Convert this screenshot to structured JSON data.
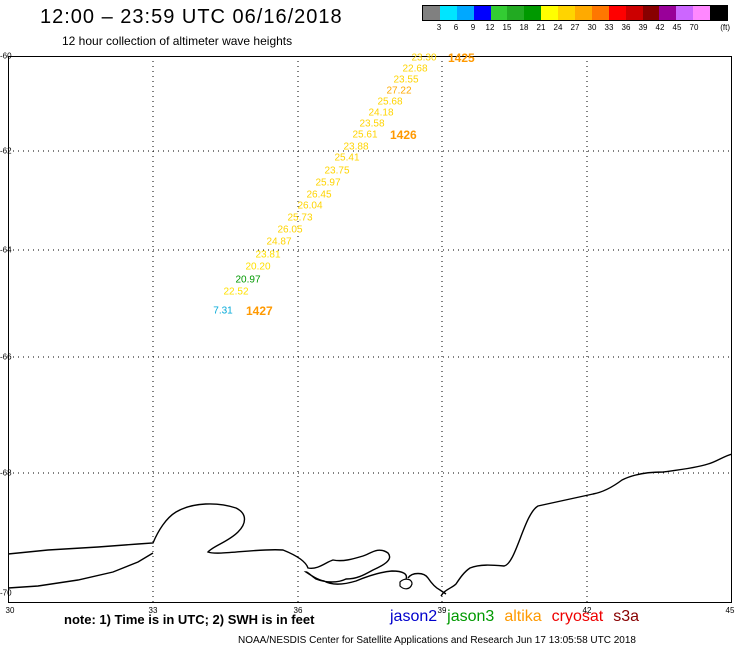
{
  "title": "12:00 – 23:59 UTC 06/16/2018",
  "subtitle": "12 hour collection of altimeter wave heights",
  "legend": {
    "colors": [
      "#808080",
      "#00e5ff",
      "#00a8ff",
      "#0000ff",
      "#33cc33",
      "#22aa22",
      "#009900",
      "#ffff00",
      "#ffd400",
      "#ffaa00",
      "#ff7700",
      "#ff0000",
      "#cc0000",
      "#880000",
      "#990099",
      "#cc66ff",
      "#ff88ff",
      "#000000"
    ],
    "values": [
      "3",
      "6",
      "9",
      "12",
      "15",
      "18",
      "21",
      "24",
      "27",
      "30",
      "33",
      "36",
      "39",
      "42",
      "45",
      "70"
    ],
    "unit": "(ft)"
  },
  "axes": {
    "lon_labels": [
      "30",
      "33",
      "36",
      "39",
      "42",
      "45"
    ],
    "lat_labels": [
      "-60",
      "-62",
      "-64",
      "-66",
      "-68",
      "-70"
    ]
  },
  "wave_heights": [
    {
      "v": "23.30",
      "c": "#ffd400"
    },
    {
      "v": "22.68",
      "c": "#ffd400"
    },
    {
      "v": "23.55",
      "c": "#ffd400"
    },
    {
      "v": "27.22",
      "c": "#ffaa00"
    },
    {
      "v": "25.68",
      "c": "#ffd400"
    },
    {
      "v": "24.18",
      "c": "#ffd400"
    },
    {
      "v": "23.58",
      "c": "#ffd400"
    },
    {
      "v": "25.61",
      "c": "#ffd400"
    },
    {
      "v": "23.88",
      "c": "#ffd400"
    },
    {
      "v": "25.41",
      "c": "#ffd400"
    },
    {
      "v": "23.75",
      "c": "#ffd400"
    },
    {
      "v": "25.97",
      "c": "#ffd400"
    },
    {
      "v": "26.45",
      "c": "#ffd400"
    },
    {
      "v": "26.04",
      "c": "#ffd400"
    },
    {
      "v": "25.73",
      "c": "#ffd400"
    },
    {
      "v": "26.05",
      "c": "#ffd400"
    },
    {
      "v": "24.87",
      "c": "#ffd400"
    },
    {
      "v": "23.81",
      "c": "#ffe000"
    },
    {
      "v": "20.20",
      "c": "#ffe000"
    },
    {
      "v": "20.97",
      "c": "#009900"
    },
    {
      "v": "22.52",
      "c": "#ffe000"
    },
    {
      "v": "7.31",
      "c": "#00a8d8"
    }
  ],
  "passes": [
    "1425",
    "1426",
    "1427"
  ],
  "note": "note: 1) Time is in UTC; 2) SWH is in feet",
  "satellites": [
    {
      "name": "jason2",
      "color": "#0000cc"
    },
    {
      "name": "jason3",
      "color": "#009900"
    },
    {
      "name": "altika",
      "color": "#ff9900"
    },
    {
      "name": "cryosat",
      "color": "#ee0000"
    },
    {
      "name": "s3a",
      "color": "#880000"
    }
  ],
  "credit": "NOAA/NESDIS Center for Satellite Applications and Research    Jun 17 13:05:58 UTC 2018"
}
